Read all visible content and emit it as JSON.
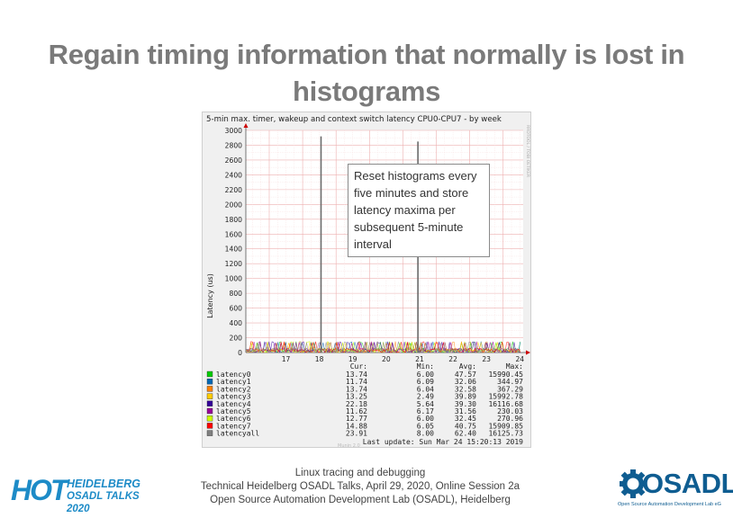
{
  "slide": {
    "title_line1": "Regain timing information that normally is lost in",
    "title_line2": "histograms"
  },
  "callout": {
    "text": "Reset histograms every five minutes and store latency maxima per subsequent 5-minute interval"
  },
  "footer": {
    "line1": "Linux tracing and debugging",
    "line2": "Technical Heidelberg OSADL Talks, April 29, 2020, Online Session 2a",
    "line3": "Open Source Automation Development Lab (OSADL), Heidelberg"
  },
  "logos": {
    "hot_mark": "HOT",
    "hot_line1": "HEIDELBERG",
    "hot_line2": "OSADL TALKS 2020",
    "osadl_word": "OSADL",
    "osadl_tagline": "Open Source Automation Development Lab eG"
  },
  "colors": {
    "title": "#7a7a7a",
    "hot_blue": "#1d8bc7",
    "osadl_blue": "#0f5d91",
    "spike": "#6b6b6b",
    "grid": "#f2b8b8"
  },
  "chart_data": {
    "type": "line",
    "title": "5-min max. timer, wakeup and context switch latency CPU0-CPU7 - by week",
    "ylabel": "Latency (us)",
    "xlabel": "",
    "ylim": [
      0,
      3000
    ],
    "yticks": [
      0,
      200,
      400,
      600,
      800,
      1000,
      1200,
      1400,
      1600,
      1800,
      2000,
      2200,
      2400,
      2600,
      2800,
      3000
    ],
    "x_ticks": [
      "17",
      "18",
      "19",
      "20",
      "21",
      "22",
      "23",
      "24"
    ],
    "x_range": [
      16.3,
      24.6
    ],
    "side_label": "RRDTOOL / TOBI OETIKER",
    "watermark": "Munin 2.0",
    "grid": true,
    "spikes": [
      {
        "x": 18.55,
        "value": 2920
      },
      {
        "x": 21.45,
        "value": 2850
      }
    ],
    "baseline_noise_max": 150,
    "table_headers": [
      "Cur:",
      "Min:",
      "Avg:",
      "Max:"
    ],
    "series": [
      {
        "name": "latency0",
        "color": "#00cc00",
        "cur": "13.74",
        "min": "6.00",
        "avg": "47.57",
        "max": "15990.45"
      },
      {
        "name": "latency1",
        "color": "#0066b3",
        "cur": "11.74",
        "min": "6.09",
        "avg": "32.06",
        "max": "344.97"
      },
      {
        "name": "latency2",
        "color": "#ff8000",
        "cur": "13.74",
        "min": "6.04",
        "avg": "32.58",
        "max": "367.29"
      },
      {
        "name": "latency3",
        "color": "#ffcc00",
        "cur": "13.25",
        "min": "2.49",
        "avg": "39.89",
        "max": "15992.78"
      },
      {
        "name": "latency4",
        "color": "#330099",
        "cur": "22.18",
        "min": "5.64",
        "avg": "39.30",
        "max": "16116.68"
      },
      {
        "name": "latency5",
        "color": "#990099",
        "cur": "11.62",
        "min": "6.17",
        "avg": "31.56",
        "max": "230.03"
      },
      {
        "name": "latency6",
        "color": "#ccff00",
        "cur": "12.77",
        "min": "6.00",
        "avg": "32.45",
        "max": "270.96"
      },
      {
        "name": "latency7",
        "color": "#ff0000",
        "cur": "14.88",
        "min": "6.05",
        "avg": "40.75",
        "max": "15909.85"
      },
      {
        "name": "latencyall",
        "color": "#808080",
        "cur": "23.91",
        "min": "8.00",
        "avg": "62.40",
        "max": "16125.73"
      }
    ],
    "last_update": "Last update: Sun Mar 24 15:20:13 2019"
  }
}
